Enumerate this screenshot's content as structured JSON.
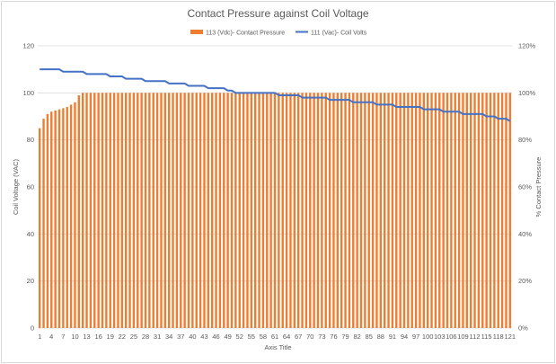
{
  "chart_data": {
    "type": "bar+line",
    "title": "Contact Pressure against Coil Voltage",
    "xlabel": "Axis Title",
    "ylabel_left": "Coil Voltage (VAC)",
    "ylabel_right": "% Contact Pressure",
    "ylim_left": [
      0,
      120
    ],
    "ylim_right": [
      0,
      1.2
    ],
    "y_ticks_left": [
      "0",
      "20",
      "40",
      "60",
      "80",
      "100",
      "120"
    ],
    "y_ticks_right": [
      "0%",
      "20%",
      "40%",
      "60%",
      "80%",
      "100%",
      "120%"
    ],
    "x_tick_labels": [
      "1",
      "4",
      "7",
      "10",
      "13",
      "16",
      "19",
      "22",
      "25",
      "28",
      "31",
      "34",
      "37",
      "40",
      "43",
      "46",
      "49",
      "52",
      "55",
      "58",
      "61",
      "64",
      "67",
      "70",
      "73",
      "76",
      "79",
      "82",
      "85",
      "88",
      "91",
      "94",
      "97",
      "100",
      "103",
      "106",
      "109",
      "112",
      "115",
      "118",
      "121"
    ],
    "legend_position": "top-center",
    "legend": {
      "bar": "113 (Vdc)- Contact Pressure",
      "line": "111 (Vac)- Coil Volts"
    },
    "colors": {
      "bar": "#ed7d31",
      "line": "#4472c4",
      "grid": "#d9d9d9",
      "text": "#595959"
    },
    "categories_count": 121,
    "series": [
      {
        "name": "113 (Vdc)- Contact Pressure",
        "axis": "right",
        "values": [
          0.85,
          0.89,
          0.91,
          0.92,
          0.925,
          0.93,
          0.935,
          0.94,
          0.95,
          0.96,
          0.99,
          1,
          1,
          1,
          1,
          1,
          1,
          1,
          1,
          1,
          1,
          1,
          1,
          1,
          1,
          1,
          1,
          1,
          1,
          1,
          1,
          1,
          1,
          1,
          1,
          1,
          1,
          1,
          1,
          1,
          1,
          1,
          1,
          1,
          1,
          1,
          1,
          1,
          1,
          1,
          1,
          1,
          1,
          1,
          1,
          1,
          1,
          1,
          1,
          1,
          1,
          1,
          1,
          1,
          1,
          1,
          1,
          1,
          1,
          1,
          1,
          1,
          1,
          1,
          1,
          1,
          1,
          1,
          1,
          1,
          1,
          1,
          1,
          1,
          1,
          1,
          1,
          1,
          1,
          1,
          1,
          1,
          1,
          1,
          1,
          1,
          1,
          1,
          1,
          1,
          1,
          1,
          1,
          1,
          1,
          1,
          1,
          1,
          1,
          1,
          1,
          1,
          1,
          1,
          1,
          1,
          1,
          1,
          1,
          1,
          1
        ]
      },
      {
        "name": "111 (Vac)- Coil Volts",
        "axis": "left",
        "segments": [
          {
            "from": 1,
            "to": 6,
            "value": 110
          },
          {
            "from": 7,
            "to": 12,
            "value": 109
          },
          {
            "from": 13,
            "to": 18,
            "value": 108
          },
          {
            "from": 19,
            "to": 22,
            "value": 107
          },
          {
            "from": 23,
            "to": 27,
            "value": 106
          },
          {
            "from": 28,
            "to": 33,
            "value": 105
          },
          {
            "from": 34,
            "to": 38,
            "value": 104
          },
          {
            "from": 39,
            "to": 43,
            "value": 103
          },
          {
            "from": 44,
            "to": 48,
            "value": 102
          },
          {
            "from": 49,
            "to": 50,
            "value": 101
          },
          {
            "from": 51,
            "to": 61,
            "value": 100
          },
          {
            "from": 62,
            "to": 67,
            "value": 99
          },
          {
            "from": 68,
            "to": 74,
            "value": 98
          },
          {
            "from": 75,
            "to": 80,
            "value": 97
          },
          {
            "from": 81,
            "to": 86,
            "value": 96
          },
          {
            "from": 87,
            "to": 91,
            "value": 95
          },
          {
            "from": 92,
            "to": 98,
            "value": 94
          },
          {
            "from": 99,
            "to": 103,
            "value": 93
          },
          {
            "from": 104,
            "to": 108,
            "value": 92
          },
          {
            "from": 109,
            "to": 114,
            "value": 91
          },
          {
            "from": 115,
            "to": 117,
            "value": 90
          },
          {
            "from": 118,
            "to": 120,
            "value": 89
          },
          {
            "from": 121,
            "to": 121,
            "value": 88
          }
        ]
      }
    ]
  }
}
